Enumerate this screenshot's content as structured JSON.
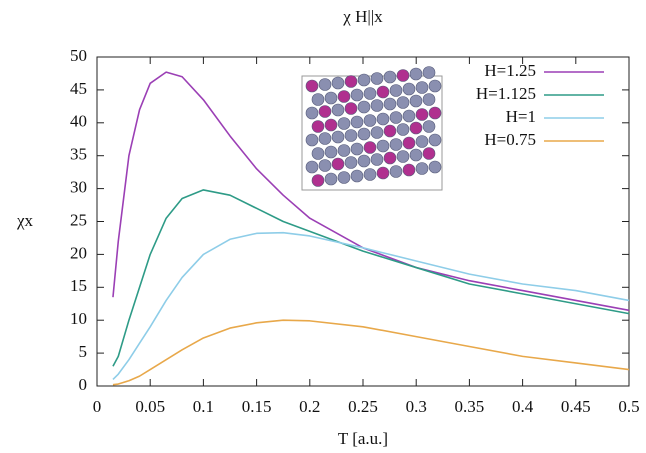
{
  "chart_data": {
    "type": "line",
    "title": "χ H||x",
    "x_label": "T [a.u.]",
    "y_label": "χx",
    "x": [
      0.015,
      0.02,
      0.03,
      0.04,
      0.05,
      0.065,
      0.08,
      0.1,
      0.125,
      0.15,
      0.175,
      0.2,
      0.25,
      0.3,
      0.35,
      0.4,
      0.45,
      0.5
    ],
    "series": [
      {
        "name": "H=1.25",
        "color": "#9b3fb5",
        "values": [
          13.5,
          22,
          35,
          42,
          46,
          47.7,
          47,
          43.5,
          38,
          33,
          29,
          25.5,
          21,
          18,
          16,
          14.5,
          13,
          11.5
        ]
      },
      {
        "name": "H=1.125",
        "color": "#2e9b87",
        "values": [
          3,
          4.5,
          10,
          15,
          20,
          25.5,
          28.5,
          29.8,
          29,
          27,
          25,
          23.5,
          20.5,
          18,
          15.5,
          14,
          12.5,
          11
        ]
      },
      {
        "name": "H=1",
        "color": "#8ecde8",
        "values": [
          1,
          1.8,
          4,
          6.5,
          9,
          13,
          16.5,
          20,
          22.3,
          23.2,
          23.3,
          22.8,
          21,
          19,
          17,
          15.5,
          14.5,
          13
        ]
      },
      {
        "name": "H=0.75",
        "color": "#e8a84a",
        "values": [
          0.2,
          0.3,
          0.8,
          1.5,
          2.5,
          4,
          5.5,
          7.3,
          8.8,
          9.6,
          10,
          9.9,
          9,
          7.5,
          6,
          4.5,
          3.5,
          2.5
        ]
      }
    ],
    "xlim": [
      0,
      0.5
    ],
    "xticks": [
      0,
      0.05,
      0.1,
      0.15,
      0.2,
      0.25,
      0.3,
      0.35,
      0.4,
      0.45,
      0.5
    ],
    "ylim": [
      0,
      50
    ],
    "yticks": [
      0,
      5,
      10,
      15,
      20,
      25,
      30,
      35,
      40,
      45,
      50
    ],
    "legend": "upper right"
  }
}
